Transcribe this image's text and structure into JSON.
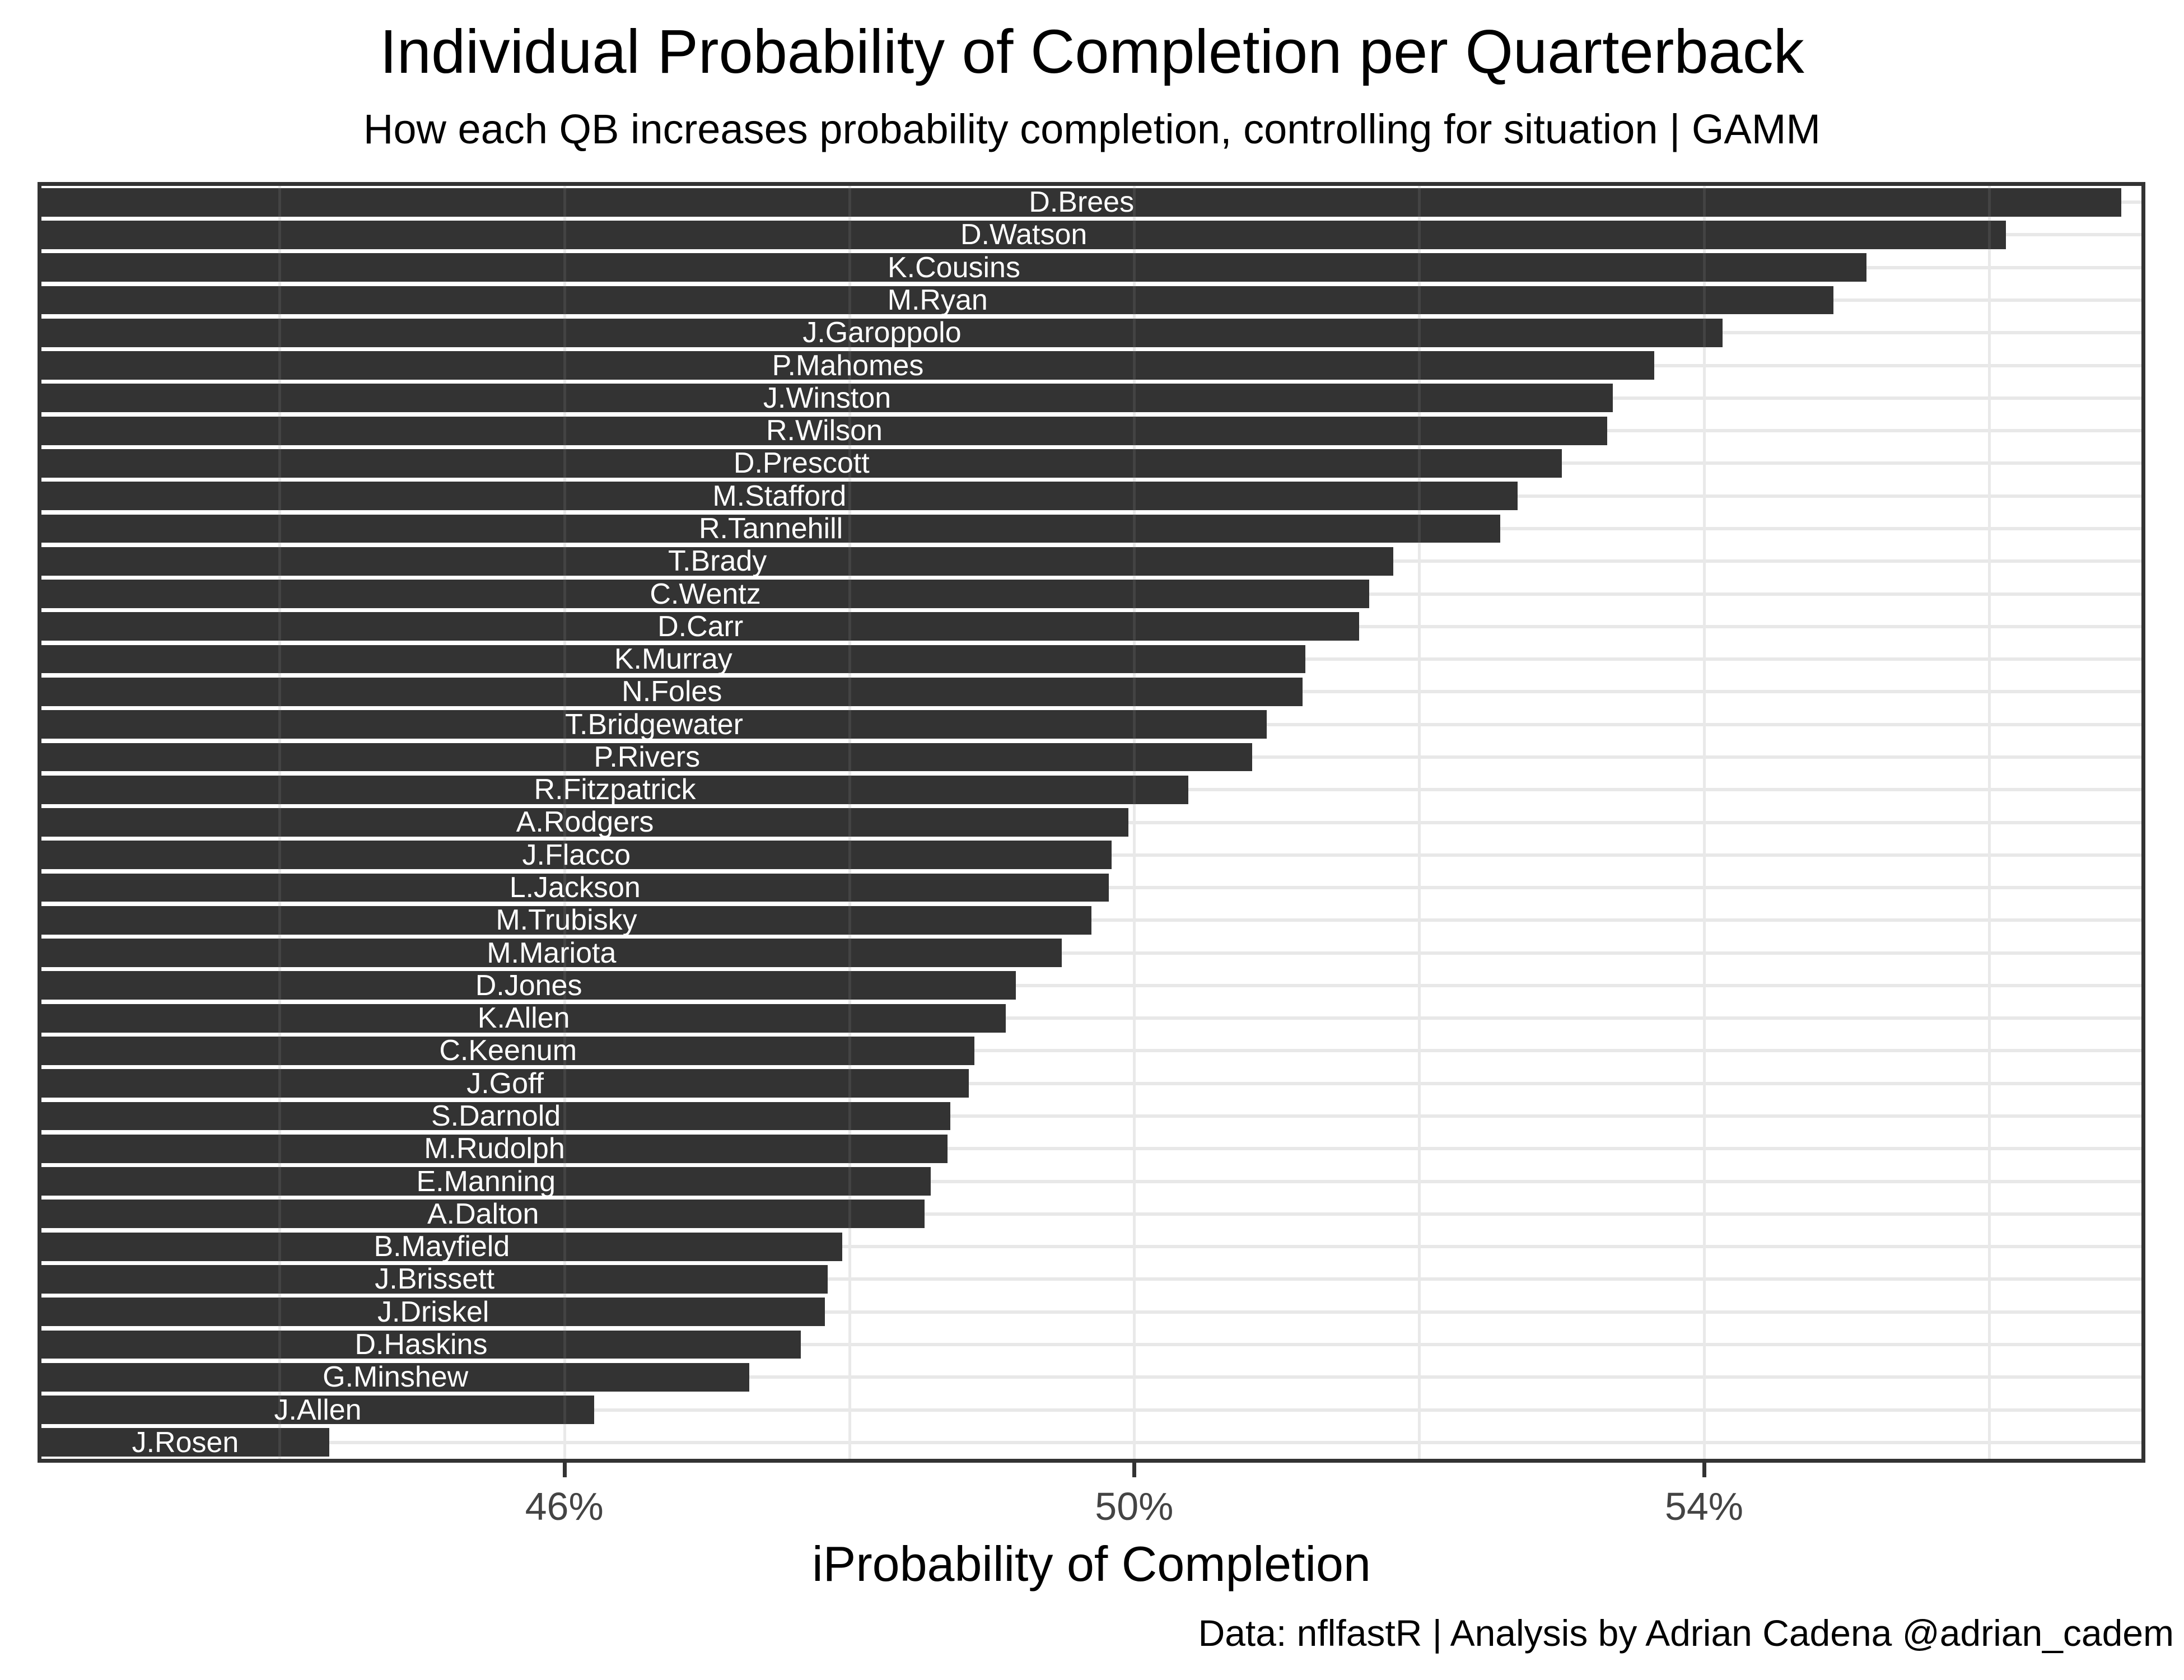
{
  "title": "Individual Probability of Completion per Quarterback",
  "subtitle": "How each QB increases probability completion, controlling for situation | GAMM",
  "caption": "Data: nflfastR | Analysis by Adrian Cadena @adrian_cadem",
  "chart_data": {
    "type": "bar",
    "orientation": "horizontal",
    "title": "Individual Probability of Completion per Quarterback",
    "subtitle": "How each QB increases probability completion, controlling for situation | GAMM",
    "xlabel": "iProbability of Completion",
    "ylabel": "",
    "caption": "Data: nflfastR | Analysis by Adrian Cadena @adrian_cadem",
    "xlim": [
      42.33,
      57.07
    ],
    "grid": true,
    "legend": "none",
    "x_ticks": [
      {
        "value": 46,
        "label": "46%"
      },
      {
        "value": 50,
        "label": "50%"
      },
      {
        "value": 54,
        "label": "54%"
      }
    ],
    "vertical_gridlines": [
      44,
      46,
      48,
      50,
      52,
      54,
      56
    ],
    "categories": [
      "D.Brees",
      "D.Watson",
      "K.Cousins",
      "M.Ryan",
      "J.Garoppolo",
      "P.Mahomes",
      "J.Winston",
      "R.Wilson",
      "D.Prescott",
      "M.Stafford",
      "R.Tannehill",
      "T.Brady",
      "C.Wentz",
      "D.Carr",
      "K.Murray",
      "N.Foles",
      "T.Bridgewater",
      "P.Rivers",
      "R.Fitzpatrick",
      "A.Rodgers",
      "J.Flacco",
      "L.Jackson",
      "M.Trubisky",
      "M.Mariota",
      "D.Jones",
      "K.Allen",
      "C.Keenum",
      "J.Goff",
      "S.Darnold",
      "M.Rudolph",
      "E.Manning",
      "A.Dalton",
      "B.Mayfield",
      "J.Brissett",
      "J.Driskel",
      "D.Haskins",
      "G.Minshew",
      "J.Allen",
      "J.Rosen"
    ],
    "values": [
      56.93,
      56.12,
      55.14,
      54.91,
      54.13,
      53.65,
      53.36,
      53.32,
      53.0,
      52.69,
      52.57,
      51.82,
      51.65,
      51.58,
      51.2,
      51.18,
      50.93,
      50.83,
      50.38,
      49.96,
      49.84,
      49.82,
      49.7,
      49.49,
      49.17,
      49.1,
      48.88,
      48.84,
      48.71,
      48.69,
      48.57,
      48.53,
      47.95,
      47.85,
      47.83,
      47.66,
      47.3,
      46.21,
      44.35
    ],
    "value_unit": "%",
    "colors": {
      "bar": "#333333",
      "bar_label_text": "#ffffff",
      "gridline": "#e8e8e8",
      "panel_border": "#333333",
      "tick_text": "#444444",
      "title_text": "#000000"
    }
  }
}
